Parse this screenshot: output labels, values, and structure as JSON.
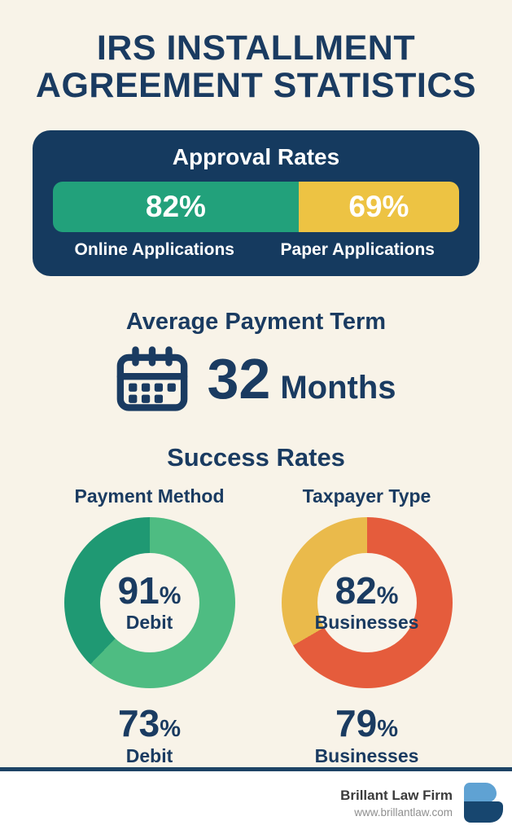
{
  "theme": {
    "background": "#f8f3e8",
    "navy_text": "#1a3b61",
    "card_navy": "#153a5f",
    "divider_navy": "#1d4365",
    "footer_background": "#ffffff"
  },
  "header": {
    "title": "IRS INSTALLMENT AGREEMENT STATISTICS"
  },
  "payment_term": {
    "heading": "Average Payment Term",
    "value": "32",
    "unit": "Months",
    "icon": "calendar-icon"
  },
  "success": {
    "heading": "Success Rates"
  },
  "footer": {
    "firm_name": "Brillant Law Firm",
    "website": "www.brillantlaw.com",
    "logo": "brillant-law-b-logo",
    "logo_colors": {
      "top": "#5fa2d3",
      "bottom": "#17466f"
    }
  },
  "chart_data": [
    {
      "type": "bar",
      "title": "Approval Rates",
      "orientation": "horizontal-stacked",
      "categories": [
        "Online Applications",
        "Paper Applications"
      ],
      "values": [
        82,
        69
      ],
      "value_labels": [
        "82%",
        "69%"
      ],
      "colors": [
        "#22a17b",
        "#edc343"
      ],
      "segment_widths_pct": [
        60.5,
        39.5
      ],
      "value_label_color": "#ffffff"
    },
    {
      "type": "donut",
      "title": "Payment Method",
      "center": {
        "value": "91",
        "unit": "%",
        "label": "Debit"
      },
      "slices": [
        {
          "name": "primary",
          "color": "#4ebc82",
          "sweep_deg": 224
        },
        {
          "name": "secondary",
          "color": "#1f9973",
          "sweep_deg": 136
        }
      ],
      "stat": {
        "value": "73",
        "unit": "%",
        "label": "Debit"
      },
      "hole_color": "#f9f4ea"
    },
    {
      "type": "donut",
      "title": "Taxpayer Type",
      "center": {
        "value": "82",
        "unit": "%",
        "label": "Businesses"
      },
      "slices": [
        {
          "name": "primary",
          "color": "#e55c3c",
          "sweep_deg": 240
        },
        {
          "name": "secondary",
          "color": "#eaba4b",
          "sweep_deg": 120
        }
      ],
      "stat": {
        "value": "79",
        "unit": "%",
        "label": "Businesses"
      },
      "hole_color": "#f9f4ea"
    }
  ]
}
